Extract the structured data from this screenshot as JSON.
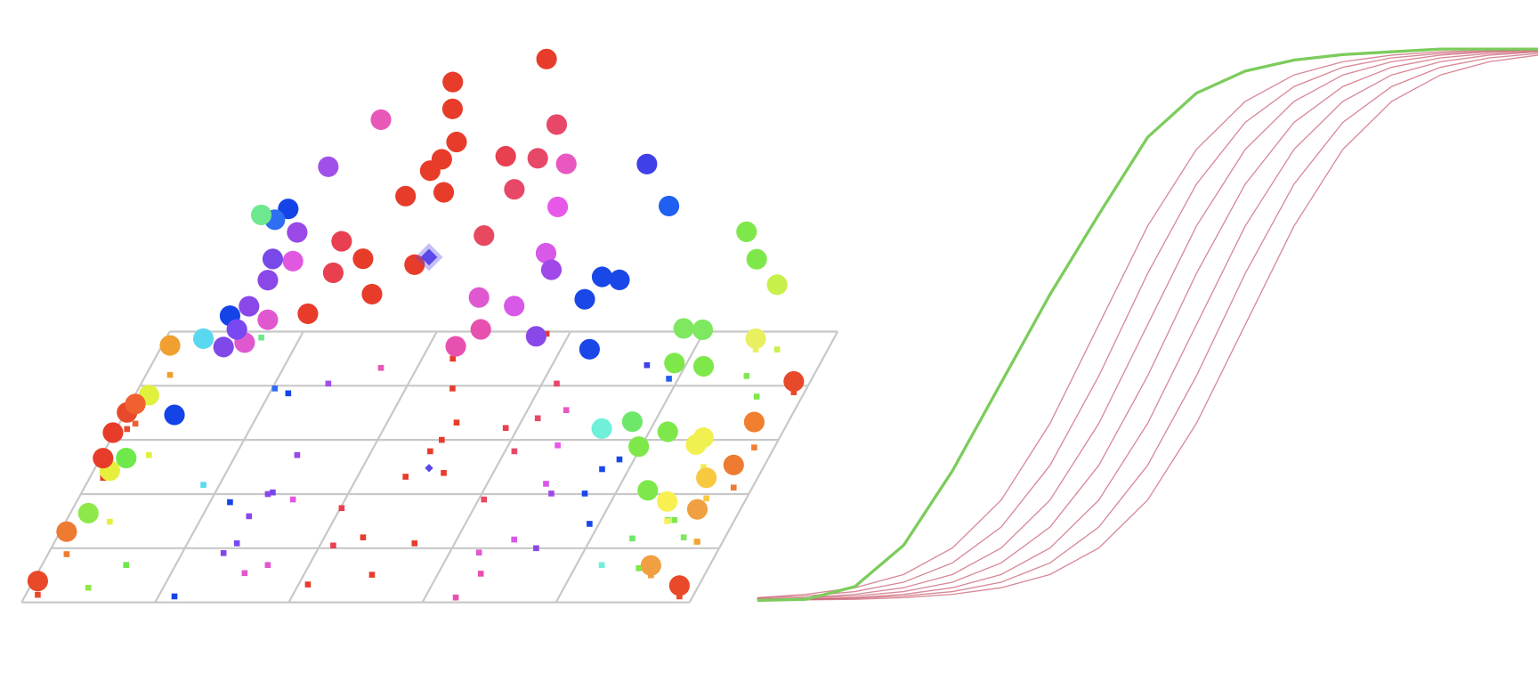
{
  "chart_data": [
    {
      "type": "scatter3d",
      "xlim": [
        0,
        5
      ],
      "xticks": [
        0,
        1,
        2,
        3,
        4,
        5
      ],
      "depthlim": [
        0,
        5
      ],
      "depthticks": [
        0,
        1,
        2,
        3,
        4,
        5
      ],
      "ylim": [
        0,
        6
      ],
      "grid_color": "#c8c8c8",
      "points": [
        {
          "x": 0.09,
          "depth": 0.14,
          "height": 0.28,
          "color": "#e8492a"
        },
        {
          "x": 0.14,
          "depth": 0.89,
          "height": 0.46,
          "color": "#ee7b32"
        },
        {
          "x": 0.44,
          "depth": 0.27,
          "height": 1.52,
          "color": "#8ee84a"
        },
        {
          "x": 0.33,
          "depth": 1.49,
          "height": 1.04,
          "color": "#e6f03c"
        },
        {
          "x": 0.63,
          "depth": 0.69,
          "height": 2.18,
          "color": "#6ee84a"
        },
        {
          "x": 0.35,
          "depth": 2.72,
          "height": 1.22,
          "color": "#e0f03c"
        },
        {
          "x": 0.18,
          "depth": 4.2,
          "height": 0.6,
          "color": "#f0a030"
        },
        {
          "x": 1.12,
          "depth": 0.11,
          "height": 3.7,
          "color": "#1444e8"
        },
        {
          "x": 0.88,
          "depth": 2.17,
          "height": 2.98,
          "color": "#5ad8f0"
        },
        {
          "x": 2.23,
          "depth": 4.5,
          "height": 5.64,
          "color": "#e83c2a"
        },
        {
          "x": 2.83,
          "depth": 4.96,
          "height": 5.6,
          "color": "#e83c2a"
        },
        {
          "x": 1.73,
          "depth": 4.33,
          "height": 5.06,
          "color": "#e858b8"
        },
        {
          "x": 1.4,
          "depth": 4.04,
          "height": 4.42,
          "color": "#a050e8"
        },
        {
          "x": 3.71,
          "depth": 4.38,
          "height": 4.1,
          "color": "#4040e8"
        },
        {
          "x": 3.93,
          "depth": 4.13,
          "height": 3.52,
          "color": "#2060f0"
        },
        {
          "x": 4.5,
          "depth": 4.18,
          "height": 2.94,
          "color": "#7ee84a"
        },
        {
          "x": 4.66,
          "depth": 3.8,
          "height": 2.8,
          "color": "#7ee84a"
        },
        {
          "x": 4.62,
          "depth": 4.67,
          "height": 1.32,
          "color": "#c8f04a"
        },
        {
          "x": 4.92,
          "depth": 3.88,
          "height": 0.22,
          "color": "#e8492a"
        },
        {
          "x": 4.85,
          "depth": 2.86,
          "height": 0.52,
          "color": "#f08030"
        },
        {
          "x": 4.86,
          "depth": 2.12,
          "height": 0.46,
          "color": "#ee7b32"
        },
        {
          "x": 4.7,
          "depth": 1.92,
          "height": 0.42,
          "color": "#f8c840"
        },
        {
          "x": 4.8,
          "depth": 1.12,
          "height": 1.98,
          "color": "#f0f050"
        },
        {
          "x": 4.6,
          "depth": 0.5,
          "height": 0.2,
          "color": "#f0a040"
        },
        {
          "x": 4.9,
          "depth": 0.11,
          "height": 0.22,
          "color": "#e8492a"
        },
        {
          "x": 4.55,
          "depth": 0.62,
          "height": 1.6,
          "color": "#7ee84a"
        },
        {
          "x": 4.19,
          "depth": 0.69,
          "height": 2.78,
          "color": "#70f0d8"
        },
        {
          "x": 3.93,
          "depth": 1.45,
          "height": 3.56,
          "color": "#1a48e8"
        },
        {
          "x": 3.77,
          "depth": 2.01,
          "height": 3.96,
          "color": "#1a48e8"
        },
        {
          "x": 3.8,
          "depth": 2.46,
          "height": 3.92,
          "color": "#1a48e8"
        },
        {
          "x": 3.89,
          "depth": 2.64,
          "height": 3.66,
          "color": "#1a48e8"
        },
        {
          "x": 3.63,
          "depth": 1.0,
          "height": 4.32,
          "color": "#8a48e8"
        },
        {
          "x": 3.23,
          "depth": 0.09,
          "height": 5.12,
          "color": "#e850b0"
        },
        {
          "x": 3.32,
          "depth": 0.53,
          "height": 4.98,
          "color": "#e850b0"
        },
        {
          "x": 3.22,
          "depth": 0.92,
          "height": 5.2,
          "color": "#e058d0"
        },
        {
          "x": 3.43,
          "depth": 1.16,
          "height": 4.76,
          "color": "#d858e8"
        },
        {
          "x": 3.04,
          "depth": 1.9,
          "height": 5.38,
          "color": "#e84860"
        },
        {
          "x": 3.44,
          "depth": 2.19,
          "height": 4.7,
          "color": "#d858e8"
        },
        {
          "x": 3.52,
          "depth": 2.01,
          "height": 4.56,
          "color": "#a048e8"
        },
        {
          "x": 3.37,
          "depth": 2.9,
          "height": 4.86,
          "color": "#e858e8"
        },
        {
          "x": 3.29,
          "depth": 3.55,
          "height": 5.02,
          "color": "#e858c0"
        },
        {
          "x": 3.11,
          "depth": 4.04,
          "height": 5.28,
          "color": "#e84868"
        },
        {
          "x": 3.11,
          "depth": 3.4,
          "height": 5.3,
          "color": "#e84868"
        },
        {
          "x": 2.91,
          "depth": 3.22,
          "height": 5.54,
          "color": "#e84050"
        },
        {
          "x": 3.07,
          "depth": 2.79,
          "height": 5.34,
          "color": "#e84868"
        },
        {
          "x": 2.52,
          "depth": 3.32,
          "height": 5.72,
          "color": "#e83c2a"
        },
        {
          "x": 2.35,
          "depth": 3.95,
          "height": 5.7,
          "color": "#e83c2a"
        },
        {
          "x": 2.48,
          "depth": 3.0,
          "height": 5.72,
          "color": "#e83c2a"
        },
        {
          "x": 2.44,
          "depth": 2.79,
          "height": 5.72,
          "color": "#e83c2a"
        },
        {
          "x": 2.63,
          "depth": 2.39,
          "height": 5.72,
          "color": "#e83c2a"
        },
        {
          "x": 2.36,
          "depth": 2.32,
          "height": 5.72,
          "color": "#e83c2a"
        },
        {
          "x": 2.01,
          "depth": 1.74,
          "height": 5.44,
          "color": "#e84050"
        },
        {
          "x": 2.29,
          "depth": 1.2,
          "height": 5.68,
          "color": "#e83c2a"
        },
        {
          "x": 2.1,
          "depth": 1.05,
          "height": 5.56,
          "color": "#e84050"
        },
        {
          "x": 2.51,
          "depth": 0.51,
          "height": 5.72,
          "color": "#e83c2a"
        },
        {
          "x": 2.07,
          "depth": 0.33,
          "height": 5.52,
          "color": "#e83c2a"
        },
        {
          "x": 2.7,
          "depth": 1.09,
          "height": 5.68,
          "color": "#e83c2a"
        },
        {
          "x": 1.46,
          "depth": 2.72,
          "height": 4.54,
          "color": "#9a48e8"
        },
        {
          "x": 1.61,
          "depth": 1.9,
          "height": 4.86,
          "color": "#e058e0"
        },
        {
          "x": 1.43,
          "depth": 2.03,
          "height": 4.76,
          "color": "#7848e8"
        },
        {
          "x": 1.4,
          "depth": 2.0,
          "height": 4.36,
          "color": "#8a48e8"
        },
        {
          "x": 1.14,
          "depth": 3.86,
          "height": 3.76,
          "color": "#1444e8"
        },
        {
          "x": 1.02,
          "depth": 3.95,
          "height": 3.44,
          "color": "#2e6ef0"
        },
        {
          "x": 0.71,
          "depth": 4.89,
          "height": 2.5,
          "color": "#6ee88e"
        },
        {
          "x": 1.35,
          "depth": 1.59,
          "height": 4.28,
          "color": "#8a48e8"
        },
        {
          "x": 1.15,
          "depth": 1.85,
          "height": 3.8,
          "color": "#1444e8"
        },
        {
          "x": 1.69,
          "depth": 0.69,
          "height": 5.0,
          "color": "#e058d0"
        },
        {
          "x": 1.31,
          "depth": 0.91,
          "height": 4.2,
          "color": "#8048e8"
        },
        {
          "x": 1.55,
          "depth": 0.54,
          "height": 4.7,
          "color": "#e058d0"
        },
        {
          "x": 1.37,
          "depth": 1.09,
          "height": 4.36,
          "color": "#7a48f0"
        },
        {
          "x": 4.69,
          "depth": 1.2,
          "height": 4.26,
          "color": "#7ee860"
        },
        {
          "x": 4.4,
          "depth": 3.15,
          "height": 2.08,
          "color": "#7ee860"
        },
        {
          "x": 4.44,
          "depth": 3.0,
          "height": 1.5,
          "color": "#7ee84a"
        },
        {
          "x": 4.46,
          "depth": 4.67,
          "height": 0.22,
          "color": "#e8f060"
        },
        {
          "x": 4.55,
          "depth": 1.52,
          "height": 3.2,
          "color": "#7ee84a"
        },
        {
          "x": 4.31,
          "depth": 1.18,
          "height": 2.38,
          "color": "#6ee86a"
        },
        {
          "x": 4.5,
          "depth": 1.52,
          "height": 1.8,
          "color": "#7ee84a"
        },
        {
          "x": 4.48,
          "depth": 0.63,
          "height": 2.48,
          "color": "#7ee84a"
        },
        {
          "x": 4.55,
          "depth": 2.5,
          "height": 0.6,
          "color": "#f0f050"
        },
        {
          "x": 4.5,
          "depth": 1.5,
          "height": 0.4,
          "color": "#f8f050"
        },
        {
          "x": 4.81,
          "depth": 1.12,
          "height": 0.66,
          "color": "#f0a040"
        },
        {
          "x": 0.08,
          "depth": 3.2,
          "height": 0.34,
          "color": "#e8492a"
        },
        {
          "x": 0.12,
          "depth": 3.3,
          "height": 0.4,
          "color": "#f06030"
        },
        {
          "x": 0.13,
          "depth": 2.5,
          "height": 0.7,
          "color": "#e83c2a"
        },
        {
          "x": 0.1,
          "depth": 2.3,
          "height": 0.4,
          "color": "#e83c2a"
        },
        {
          "x": 2.5,
          "depth": 2.48,
          "height": 4.3,
          "color": "#5a48e8",
          "marker": "diamond"
        }
      ]
    },
    {
      "type": "line",
      "xlim": [
        0,
        16
      ],
      "ylim": [
        0,
        1
      ],
      "x": [
        0,
        1,
        2,
        3,
        4,
        5,
        6,
        7,
        8,
        9,
        10,
        11,
        12,
        13,
        14,
        15,
        16
      ],
      "series": [
        {
          "color": "#c8566a",
          "values": [
            0.005,
            0.011,
            0.023,
            0.047,
            0.095,
            0.182,
            0.321,
            0.5,
            0.679,
            0.818,
            0.905,
            0.953,
            0.977,
            0.989,
            0.995,
            0.998,
            0.999
          ]
        },
        {
          "color": "#c8566a",
          "values": [
            0.004,
            0.008,
            0.016,
            0.033,
            0.068,
            0.133,
            0.245,
            0.407,
            0.593,
            0.755,
            0.867,
            0.932,
            0.967,
            0.984,
            0.992,
            0.996,
            0.998
          ]
        },
        {
          "color": "#c8566a",
          "values": [
            0.002,
            0.005,
            0.011,
            0.023,
            0.047,
            0.095,
            0.182,
            0.321,
            0.5,
            0.679,
            0.818,
            0.905,
            0.953,
            0.977,
            0.989,
            0.995,
            0.998
          ]
        },
        {
          "color": "#c8566a",
          "values": [
            0.002,
            0.004,
            0.008,
            0.016,
            0.033,
            0.068,
            0.133,
            0.245,
            0.407,
            0.593,
            0.755,
            0.867,
            0.932,
            0.967,
            0.984,
            0.992,
            0.996
          ]
        },
        {
          "color": "#c8566a",
          "values": [
            0.001,
            0.002,
            0.005,
            0.011,
            0.023,
            0.047,
            0.095,
            0.182,
            0.321,
            0.5,
            0.679,
            0.818,
            0.905,
            0.953,
            0.977,
            0.989,
            0.995
          ]
        },
        {
          "color": "#c8566a",
          "values": [
            0.001,
            0.002,
            0.004,
            0.008,
            0.016,
            0.033,
            0.068,
            0.133,
            0.245,
            0.407,
            0.593,
            0.755,
            0.867,
            0.932,
            0.967,
            0.984,
            0.992
          ]
        },
        {
          "color": "#c8566a",
          "values": [
            0.001,
            0.001,
            0.002,
            0.005,
            0.011,
            0.023,
            0.047,
            0.095,
            0.182,
            0.321,
            0.5,
            0.679,
            0.818,
            0.905,
            0.953,
            0.977,
            0.989
          ]
        },
        {
          "color": "#7ccc5c",
          "values": [
            0,
            0.002,
            0.025,
            0.1,
            0.235,
            0.395,
            0.555,
            0.7,
            0.84,
            0.92,
            0.96,
            0.98,
            0.99,
            0.995,
            1,
            1,
            1
          ]
        }
      ]
    }
  ]
}
